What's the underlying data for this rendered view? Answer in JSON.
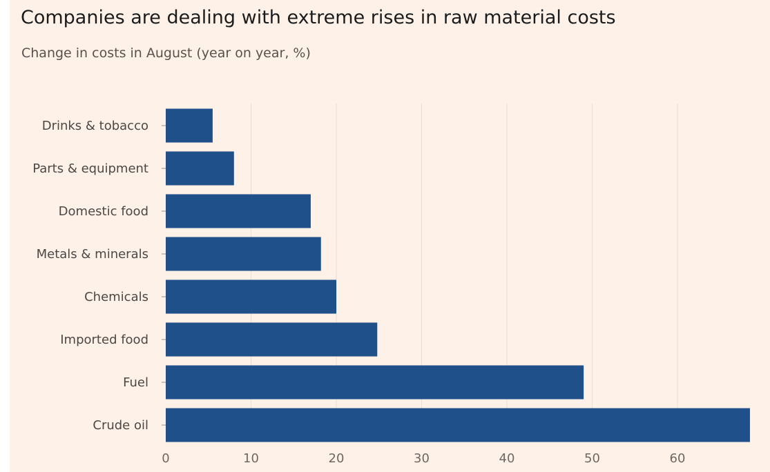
{
  "colors": {
    "background": "#fdf1e8",
    "bar": "#1f5089",
    "grid": "#e9ddd4",
    "tick_mark": "#9a918b"
  },
  "chart_data": {
    "type": "bar",
    "orientation": "horizontal",
    "title": "Companies are dealing with extreme rises in raw material costs",
    "subtitle": "Change in costs in August (year on year, %)",
    "xlabel": "",
    "ylabel": "",
    "categories": [
      "Drinks & tobacco",
      "Parts & equipment",
      "Domestic food",
      "Metals & minerals",
      "Chemicals",
      "Imported food",
      "Fuel",
      "Crude oil"
    ],
    "values": [
      5.5,
      8,
      17,
      18.2,
      20,
      24.8,
      49,
      68.5
    ],
    "xlim": [
      0,
      70
    ],
    "xticks": [
      0,
      10,
      20,
      30,
      40,
      50,
      60
    ],
    "grid": true
  }
}
